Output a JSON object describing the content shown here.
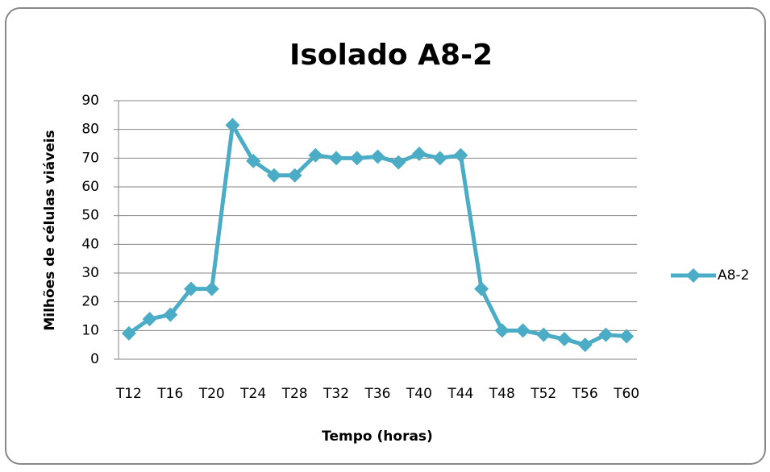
{
  "chart_data": {
    "type": "line",
    "title": "Isolado A8-2",
    "x_label": "Tempo (horas)",
    "y_label": "Milhões de células viáveis",
    "categories": [
      "T12",
      null,
      "T16",
      null,
      "T20",
      null,
      "T24",
      null,
      "T28",
      null,
      "T32",
      null,
      "T36",
      null,
      "T40",
      null,
      "T44",
      null,
      "T48",
      null,
      "T52",
      null,
      "T56",
      null,
      "T60"
    ],
    "series": [
      {
        "name": "A8-2",
        "color": "#4bacc6",
        "values": [
          9,
          14,
          15.5,
          24.5,
          24.5,
          81.5,
          69,
          64,
          64,
          71,
          70,
          70,
          70.5,
          68.5,
          71.5,
          70,
          71,
          24.5,
          10,
          10,
          8.5,
          7,
          5,
          8.5,
          8
        ]
      }
    ],
    "ylim": [
      0,
      90
    ],
    "yticks": [
      0,
      10,
      20,
      30,
      40,
      50,
      60,
      70,
      80,
      90
    ],
    "grid": true,
    "legend": "right"
  }
}
